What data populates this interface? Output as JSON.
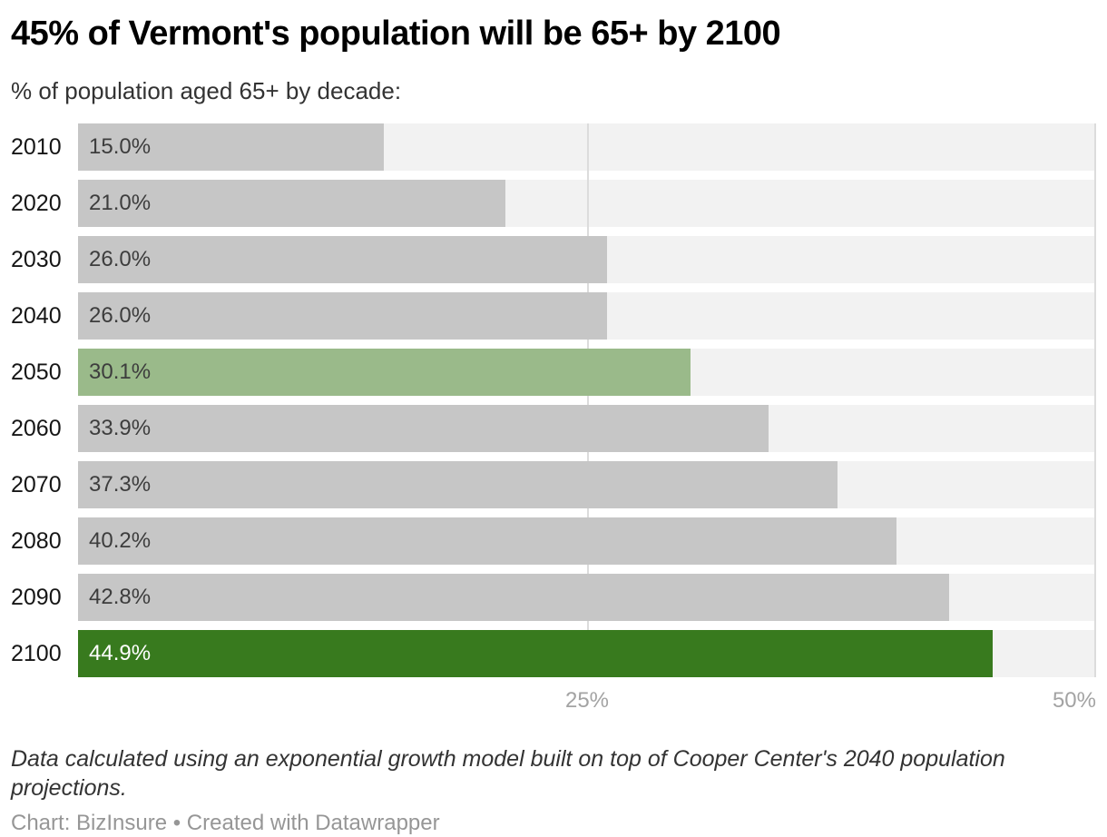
{
  "header": {
    "title": "45% of Vermont's population will be 65+ by 2100",
    "subtitle": "% of population aged 65+ by decade:"
  },
  "chart_data": {
    "type": "bar",
    "orientation": "horizontal",
    "title": "45% of Vermont's population will be 65+ by 2100",
    "subtitle": "% of population aged 65+ by decade:",
    "categories": [
      "2010",
      "2020",
      "2030",
      "2040",
      "2050",
      "2060",
      "2070",
      "2080",
      "2090",
      "2100"
    ],
    "values": [
      15.0,
      21.0,
      26.0,
      26.0,
      30.1,
      33.9,
      37.3,
      40.2,
      42.8,
      44.9
    ],
    "value_labels": [
      "15.0%",
      "21.0%",
      "26.0%",
      "26.0%",
      "30.1%",
      "33.9%",
      "37.3%",
      "40.2%",
      "42.8%",
      "44.9%"
    ],
    "xlim": [
      0,
      50
    ],
    "x_ticks": [
      {
        "value": 25,
        "label": "25%"
      },
      {
        "value": 50,
        "label": "50%"
      }
    ],
    "grid": "vertical",
    "legend": "none",
    "bar_colors": {
      "default": "#c6c6c6",
      "2050": "#9aba8a",
      "2100": "#387a1e"
    },
    "value_label_colors": {
      "default": "#3d3d3d",
      "2100": "#ffffff"
    },
    "track_color": "#f2f2f2",
    "gridline_color": "#dcdcdc"
  },
  "footer": {
    "note": "Data calculated using an exponential growth model built on top of Cooper Center's 2040 population projections.",
    "credit": "Chart: BizInsure • Created with Datawrapper"
  },
  "colors": {
    "title": "#000000",
    "subtitle": "#333333",
    "year_label": "#161616",
    "axis_tick": "#a3a3a3",
    "note": "#333333",
    "credit": "#969696"
  }
}
